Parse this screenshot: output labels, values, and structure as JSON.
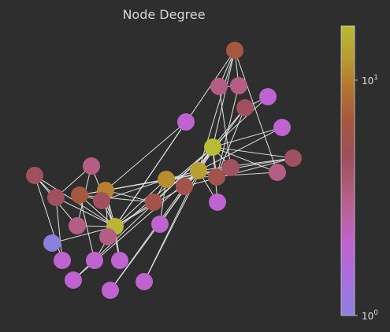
{
  "chart_data": {
    "type": "network",
    "title": "Node Degree",
    "color_scale": {
      "log": true,
      "min": 1,
      "max": 17,
      "ticks": [
        {
          "base": "10",
          "exp": "0",
          "value": 1
        },
        {
          "base": "10",
          "exp": "1",
          "value": 10
        }
      ],
      "colors": [
        "#8a7fdc",
        "#a86ee0",
        "#c062cf",
        "#b8608a",
        "#9e4f5a",
        "#a5563f",
        "#b57a30",
        "#b89f33",
        "#b8bb34"
      ]
    },
    "nodes": [
      {
        "id": 0,
        "degree": 16
      },
      {
        "id": 1,
        "degree": 9
      },
      {
        "id": 2,
        "degree": 10
      },
      {
        "id": 3,
        "degree": 6
      },
      {
        "id": 4,
        "degree": 3
      },
      {
        "id": 5,
        "degree": 4
      },
      {
        "id": 6,
        "degree": 4
      },
      {
        "id": 7,
        "degree": 4
      },
      {
        "id": 8,
        "degree": 5
      },
      {
        "id": 9,
        "degree": 2
      },
      {
        "id": 10,
        "degree": 3
      },
      {
        "id": 11,
        "degree": 1
      },
      {
        "id": 12,
        "degree": 2
      },
      {
        "id": 13,
        "degree": 5
      },
      {
        "id": 14,
        "degree": 2
      },
      {
        "id": 15,
        "degree": 2
      },
      {
        "id": 16,
        "degree": 2
      },
      {
        "id": 17,
        "degree": 2
      },
      {
        "id": 18,
        "degree": 2
      },
      {
        "id": 19,
        "degree": 3
      },
      {
        "id": 20,
        "degree": 2
      },
      {
        "id": 21,
        "degree": 2
      },
      {
        "id": 22,
        "degree": 2
      },
      {
        "id": 23,
        "degree": 5
      },
      {
        "id": 24,
        "degree": 3
      },
      {
        "id": 25,
        "degree": 3
      },
      {
        "id": 26,
        "degree": 2
      },
      {
        "id": 27,
        "degree": 4
      },
      {
        "id": 28,
        "degree": 3
      },
      {
        "id": 29,
        "degree": 4
      },
      {
        "id": 30,
        "degree": 4
      },
      {
        "id": 31,
        "degree": 6
      },
      {
        "id": 32,
        "degree": 12
      },
      {
        "id": 33,
        "degree": 17
      }
    ],
    "edges": [
      [
        0,
        1
      ],
      [
        0,
        2
      ],
      [
        0,
        3
      ],
      [
        0,
        4
      ],
      [
        0,
        5
      ],
      [
        0,
        6
      ],
      [
        0,
        7
      ],
      [
        0,
        8
      ],
      [
        0,
        10
      ],
      [
        0,
        11
      ],
      [
        0,
        12
      ],
      [
        0,
        13
      ],
      [
        0,
        17
      ],
      [
        0,
        19
      ],
      [
        0,
        21
      ],
      [
        0,
        31
      ],
      [
        1,
        2
      ],
      [
        1,
        3
      ],
      [
        1,
        7
      ],
      [
        1,
        13
      ],
      [
        1,
        17
      ],
      [
        1,
        19
      ],
      [
        1,
        21
      ],
      [
        1,
        30
      ],
      [
        2,
        3
      ],
      [
        2,
        7
      ],
      [
        2,
        8
      ],
      [
        2,
        9
      ],
      [
        2,
        13
      ],
      [
        2,
        27
      ],
      [
        2,
        28
      ],
      [
        2,
        32
      ],
      [
        3,
        7
      ],
      [
        3,
        12
      ],
      [
        3,
        13
      ],
      [
        4,
        6
      ],
      [
        4,
        10
      ],
      [
        5,
        6
      ],
      [
        5,
        10
      ],
      [
        5,
        16
      ],
      [
        6,
        16
      ],
      [
        8,
        30
      ],
      [
        8,
        32
      ],
      [
        8,
        33
      ],
      [
        9,
        33
      ],
      [
        13,
        33
      ],
      [
        14,
        32
      ],
      [
        14,
        33
      ],
      [
        15,
        32
      ],
      [
        15,
        33
      ],
      [
        18,
        32
      ],
      [
        18,
        33
      ],
      [
        19,
        33
      ],
      [
        20,
        32
      ],
      [
        20,
        33
      ],
      [
        22,
        32
      ],
      [
        22,
        33
      ],
      [
        23,
        25
      ],
      [
        23,
        27
      ],
      [
        23,
        29
      ],
      [
        23,
        32
      ],
      [
        23,
        33
      ],
      [
        24,
        25
      ],
      [
        24,
        27
      ],
      [
        24,
        31
      ],
      [
        25,
        31
      ],
      [
        26,
        29
      ],
      [
        26,
        33
      ],
      [
        27,
        33
      ],
      [
        28,
        31
      ],
      [
        28,
        33
      ],
      [
        29,
        32
      ],
      [
        29,
        33
      ],
      [
        30,
        32
      ],
      [
        30,
        33
      ],
      [
        31,
        32
      ],
      [
        31,
        33
      ],
      [
        32,
        33
      ]
    ]
  }
}
